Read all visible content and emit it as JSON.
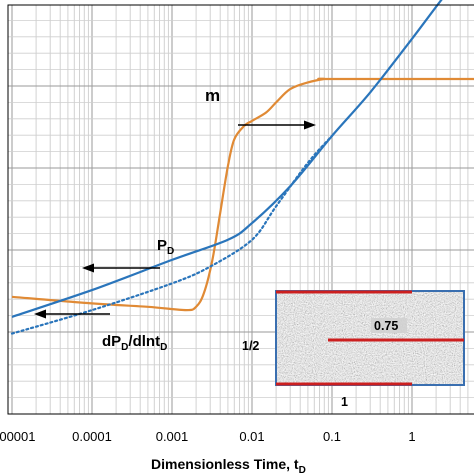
{
  "chart_data": {
    "type": "line",
    "xscale": "log",
    "xlim": [
      1e-05,
      10
    ],
    "xlabel": "Dimensionless Time, t",
    "xlabel_sub": "D",
    "xticks": [
      "0.00001",
      "0.0001",
      "0.001",
      "0.01",
      "0.1",
      "1"
    ],
    "xtick_values": [
      1e-05,
      0.0001,
      0.001,
      0.01,
      0.1,
      1
    ],
    "grid": true,
    "series": [
      {
        "name": "m",
        "color": "#e08a35",
        "style": "solid",
        "x": [
          1e-05,
          0.0001,
          0.0005,
          0.0015,
          0.002,
          0.0025,
          0.0032,
          0.004,
          0.005,
          0.006,
          0.008,
          0.01,
          0.015,
          0.02,
          0.03,
          0.05,
          0.08,
          0.1,
          10
        ],
        "y": [
          0.35,
          0.33,
          0.32,
          0.31,
          0.32,
          0.36,
          0.46,
          0.6,
          0.74,
          0.82,
          0.86,
          0.875,
          0.9,
          0.93,
          0.97,
          0.99,
          1.0,
          1.0,
          1.0
        ]
      },
      {
        "name": "P",
        "name_sub": "D",
        "color": "#2a75bb",
        "style": "solid",
        "x": [
          1e-05,
          0.0001,
          0.001,
          0.005,
          0.01,
          0.03,
          0.1,
          0.3,
          1,
          3,
          10
        ],
        "y": [
          0.29,
          0.37,
          0.46,
          0.52,
          0.57,
          0.68,
          0.83,
          0.96,
          1.12,
          1.27,
          1.42
        ]
      },
      {
        "name": "dP",
        "name_sub": "D",
        "name_mid": "/dlnt",
        "name_sub2": "D",
        "color": "#2a75bb",
        "style": "dotted",
        "x": [
          1e-05,
          0.0001,
          0.001,
          0.003,
          0.01,
          0.02,
          0.05,
          0.1
        ],
        "y": [
          0.24,
          0.31,
          0.39,
          0.44,
          0.52,
          0.62,
          0.75,
          0.83
        ]
      }
    ],
    "annotations": [
      {
        "text": "m",
        "arrow": "right"
      },
      {
        "text": "P",
        "sub": "D",
        "arrow": "left"
      },
      {
        "text": "dP",
        "sub": "D",
        "mid": "/dlnt",
        "sub2": "D",
        "arrow": "left"
      }
    ],
    "inset": {
      "labels": {
        "center": "0.75",
        "left": "1/2",
        "bottom": "1"
      },
      "border_color": "#3a6fb0",
      "fracture_color": "#cc1f1f"
    }
  }
}
